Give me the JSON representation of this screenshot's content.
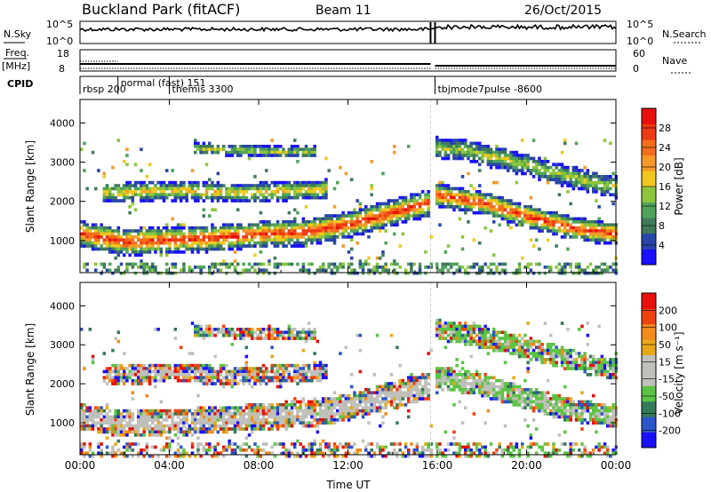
{
  "header": {
    "site": "Buckland Park (fitACF)",
    "beam": "Beam 11",
    "date": "26/Oct/2015"
  },
  "top_panels": {
    "nsky_label": "N.Sky",
    "nsky_ticks": [
      "10^5",
      "10^0"
    ],
    "nsearch_label": "N.Search",
    "nsearch_ticks": [
      "10^5",
      "10^0"
    ],
    "freq_label": "Freq.",
    "freq_unit": "[MHz]",
    "freq_ticks": [
      "18",
      "8"
    ],
    "nave_label": "Nave",
    "nave_ticks": [
      "60",
      "0"
    ],
    "cpid_label": "CPID"
  },
  "cpid_segments": [
    {
      "label": "rbsp 200",
      "start": 0.0,
      "end": 1.7
    },
    {
      "label": "normal (fast) 151",
      "start": 1.7,
      "end": 4.0
    },
    {
      "label": "themis 3300",
      "start": 4.0,
      "end": 15.7
    },
    {
      "label": "tbjmode7pulse -8600",
      "start": 15.9,
      "end": 24.0
    }
  ],
  "colorbars": {
    "power": {
      "title": "Power [dB]",
      "ticks": [
        "28",
        "24",
        "20",
        "16",
        "12",
        "8",
        "4"
      ]
    },
    "velocity": {
      "title": "Velocity [m s⁻¹]",
      "ticks": [
        "200",
        "100",
        "50",
        "15",
        "-15",
        "-50",
        "-100",
        "-200"
      ]
    }
  },
  "colors": {
    "power_scale": [
      "#1a10ff",
      "#2846a8",
      "#3f7a5b",
      "#4fa35a",
      "#8cc63a",
      "#f0c81e",
      "#f59a28",
      "#f26e1c",
      "#ee3a14",
      "#e8100a"
    ],
    "velocity_scale": [
      "#1a10ff",
      "#2b55c8",
      "#357a58",
      "#5cc444",
      "#c0c0ba",
      "#c0c0ba",
      "#e8a818",
      "#f28a1c",
      "#f0420e",
      "#e8100a"
    ]
  },
  "chart_data": [
    {
      "type": "heatmap",
      "title": "Power",
      "xlabel": "",
      "ylabel": "Slant Range [km]",
      "xlim": [
        0,
        24
      ],
      "ylim": [
        180,
        4600
      ],
      "yticks": [
        1000,
        2000,
        3000,
        4000
      ],
      "value_label": "Power [dB]",
      "value_range": [
        0,
        30
      ],
      "data_gap": [
        15.7,
        15.9
      ],
      "bands": [
        {
          "name": "near-range scatter",
          "x": [
            0,
            2,
            4,
            6,
            8,
            10,
            12,
            14,
            15.6
          ],
          "y": [
            1200,
            1000,
            1050,
            1100,
            1200,
            1250,
            1450,
            1750,
            2000
          ],
          "width_km": 350,
          "peak_dB": 27
        },
        {
          "name": "morning band",
          "x": [
            1,
            3,
            5,
            7,
            9,
            11
          ],
          "y": [
            2250,
            2300,
            2300,
            2250,
            2300,
            2350
          ],
          "width_km": 250,
          "peak_dB": 18
        },
        {
          "name": "afternoon band",
          "x": [
            5,
            7,
            9,
            10.5
          ],
          "y": [
            3400,
            3350,
            3300,
            3300
          ],
          "width_km": 150,
          "peak_dB": 15
        },
        {
          "name": "evening near band",
          "x": [
            15.9,
            18,
            20,
            22,
            24
          ],
          "y": [
            2200,
            2000,
            1650,
            1350,
            1200
          ],
          "width_km": 300,
          "peak_dB": 27
        },
        {
          "name": "evening far band",
          "x": [
            15.9,
            17,
            19,
            21,
            23,
            24
          ],
          "y": [
            3400,
            3350,
            3100,
            2800,
            2500,
            2400
          ],
          "width_km": 280,
          "peak_dB": 15
        }
      ]
    },
    {
      "type": "heatmap",
      "title": "Velocity",
      "xlabel": "Time UT",
      "ylabel": "Slant Range [km]",
      "xlim": [
        0,
        24
      ],
      "ylim": [
        180,
        4600
      ],
      "yticks": [
        1000,
        2000,
        3000,
        4000
      ],
      "xticks": [
        "00:00",
        "04:00",
        "08:00",
        "12:00",
        "16:00",
        "20:00",
        "00:00"
      ],
      "value_label": "Velocity [m s⁻¹]",
      "value_range": [
        -200,
        200
      ],
      "data_gap": [
        15.7,
        15.9
      ]
    }
  ]
}
